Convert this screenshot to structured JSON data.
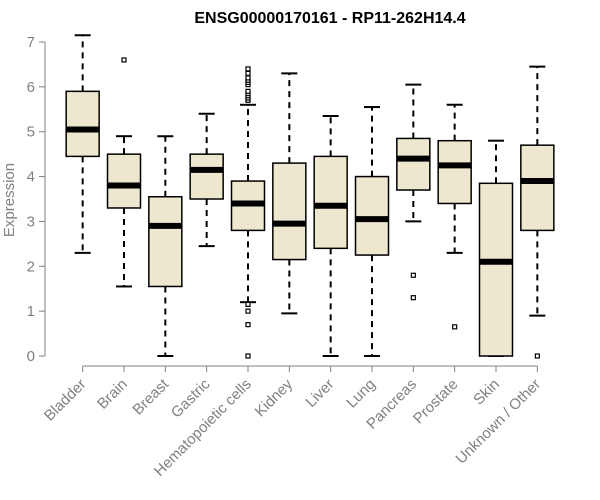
{
  "chart_data": {
    "type": "box",
    "title": "ENSG00000170161 - RP11-262H14.4",
    "xlabel": "",
    "ylabel": "Expression",
    "ylim": [
      0,
      7
    ],
    "yticks": [
      0,
      1,
      2,
      3,
      4,
      5,
      6,
      7
    ],
    "categories": [
      "Bladder",
      "Brain",
      "Breast",
      "Gastric",
      "Hematopoietic cells",
      "Kidney",
      "Liver",
      "Lung",
      "Pancreas",
      "Prostate",
      "Skin",
      "Unknown / Other"
    ],
    "boxes": [
      {
        "name": "Bladder",
        "whisker_low": 2.3,
        "q1": 4.45,
        "median": 5.05,
        "q3": 5.9,
        "whisker_high": 7.15,
        "outliers": []
      },
      {
        "name": "Brain",
        "whisker_low": 1.55,
        "q1": 3.3,
        "median": 3.8,
        "q3": 4.5,
        "whisker_high": 4.9,
        "outliers": [
          6.6
        ]
      },
      {
        "name": "Breast",
        "whisker_low": 0.0,
        "q1": 1.55,
        "median": 2.9,
        "q3": 3.55,
        "whisker_high": 4.9,
        "outliers": []
      },
      {
        "name": "Gastric",
        "whisker_low": 2.45,
        "q1": 3.5,
        "median": 4.15,
        "q3": 4.5,
        "whisker_high": 5.4,
        "outliers": []
      },
      {
        "name": "Hematopoietic cells",
        "whisker_low": 1.2,
        "q1": 2.8,
        "median": 3.4,
        "q3": 3.9,
        "whisker_high": 5.6,
        "outliers": [
          0.0,
          0.7,
          1.0,
          1.15,
          5.7,
          5.75,
          5.8,
          5.85,
          5.9,
          6.05,
          6.1,
          6.15,
          6.2,
          6.3,
          6.4
        ]
      },
      {
        "name": "Kidney",
        "whisker_low": 0.95,
        "q1": 2.15,
        "median": 2.95,
        "q3": 4.3,
        "whisker_high": 6.3,
        "outliers": []
      },
      {
        "name": "Liver",
        "whisker_low": 0.0,
        "q1": 2.4,
        "median": 3.35,
        "q3": 4.45,
        "whisker_high": 5.35,
        "outliers": []
      },
      {
        "name": "Lung",
        "whisker_low": 0.0,
        "q1": 2.25,
        "median": 3.05,
        "q3": 4.0,
        "whisker_high": 5.55,
        "outliers": []
      },
      {
        "name": "Pancreas",
        "whisker_low": 3.0,
        "q1": 3.7,
        "median": 4.4,
        "q3": 4.85,
        "whisker_high": 6.05,
        "outliers": [
          1.3,
          1.8
        ]
      },
      {
        "name": "Prostate",
        "whisker_low": 2.3,
        "q1": 3.4,
        "median": 4.25,
        "q3": 4.8,
        "whisker_high": 5.6,
        "outliers": [
          0.65
        ]
      },
      {
        "name": "Skin",
        "whisker_low": 0.0,
        "q1": 0.0,
        "median": 2.1,
        "q3": 3.85,
        "whisker_high": 4.8,
        "outliers": []
      },
      {
        "name": "Unknown / Other",
        "whisker_low": 0.9,
        "q1": 2.8,
        "median": 3.9,
        "q3": 4.7,
        "whisker_high": 6.45,
        "outliers": [
          0.0
        ]
      }
    ],
    "colors": {
      "box_fill": "#ede7cf",
      "box_stroke": "#000000",
      "median": "#000000",
      "axis_text": "#808080",
      "axis_line": "#808080"
    },
    "grid": false,
    "legend": "none"
  }
}
